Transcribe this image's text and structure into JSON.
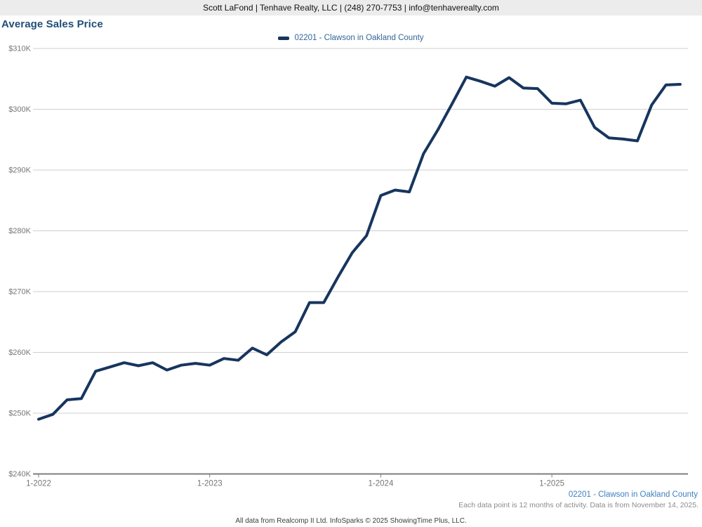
{
  "header": {
    "text": "Scott LaFond | Tenhave Realty, LLC | (248) 270-7753 | info@tenhaverealty.com"
  },
  "title": "Average Sales Price",
  "legend": {
    "label": "02201 - Clawson in Oakland County"
  },
  "footer": {
    "series_label": "02201 - Clawson in Oakland County",
    "note": "Each data point is 12 months of activity. Data is from November 14, 2025.",
    "attribution": "All data from Realcomp II Ltd. InfoSparks © 2025 ShowingTime Plus, LLC."
  },
  "colors": {
    "header_bg": "#ececec",
    "title": "#1f4e79",
    "legend_text": "#336699",
    "line": "#17355e",
    "grid": "#cfcfcf",
    "axis": "#7f7f7f",
    "tick_label": "#767676",
    "footer_link": "#4080c0",
    "note_text": "#8c8c8c"
  },
  "chart_data": {
    "type": "line",
    "title": "Average Sales Price",
    "unit": "USD thousands",
    "x": [
      "1-2022",
      "2-2022",
      "3-2022",
      "4-2022",
      "5-2022",
      "6-2022",
      "7-2022",
      "8-2022",
      "9-2022",
      "10-2022",
      "11-2022",
      "12-2022",
      "1-2023",
      "2-2023",
      "3-2023",
      "4-2023",
      "5-2023",
      "6-2023",
      "7-2023",
      "8-2023",
      "9-2023",
      "10-2023",
      "11-2023",
      "12-2023",
      "1-2024",
      "2-2024",
      "3-2024",
      "4-2024",
      "5-2024",
      "6-2024",
      "7-2024",
      "8-2024",
      "9-2024",
      "10-2024",
      "11-2024",
      "12-2024",
      "1-2025",
      "2-2025",
      "3-2025",
      "4-2025",
      "5-2025",
      "6-2025",
      "7-2025",
      "8-2025",
      "9-2025",
      "10-2025"
    ],
    "series": [
      {
        "name": "02201 - Clawson in Oakland County",
        "values": [
          249.0,
          249.8,
          252.2,
          252.4,
          256.9,
          257.6,
          258.3,
          257.8,
          258.3,
          257.1,
          257.9,
          258.2,
          257.9,
          259.0,
          258.7,
          260.7,
          259.6,
          261.7,
          263.4,
          268.2,
          268.2,
          272.4,
          276.4,
          279.2,
          285.8,
          286.7,
          286.4,
          292.7,
          296.6,
          300.9,
          305.3,
          304.6,
          303.8,
          305.2,
          303.5,
          303.4,
          301.0,
          300.9,
          301.5,
          297.0,
          295.3,
          295.1,
          294.8,
          300.7,
          304.0,
          304.1
        ]
      }
    ],
    "ylim": [
      240,
      310
    ],
    "y_tick_step": 10,
    "y_tick_labels": [
      "$240K",
      "$250K",
      "$260K",
      "$270K",
      "$280K",
      "$290K",
      "$300K",
      "$310K"
    ],
    "x_tick_indices": [
      0,
      12,
      24,
      36
    ],
    "x_tick_labels": [
      "1-2022",
      "1-2023",
      "1-2024",
      "1-2025"
    ],
    "grid": true,
    "legend_position": "top-center"
  }
}
